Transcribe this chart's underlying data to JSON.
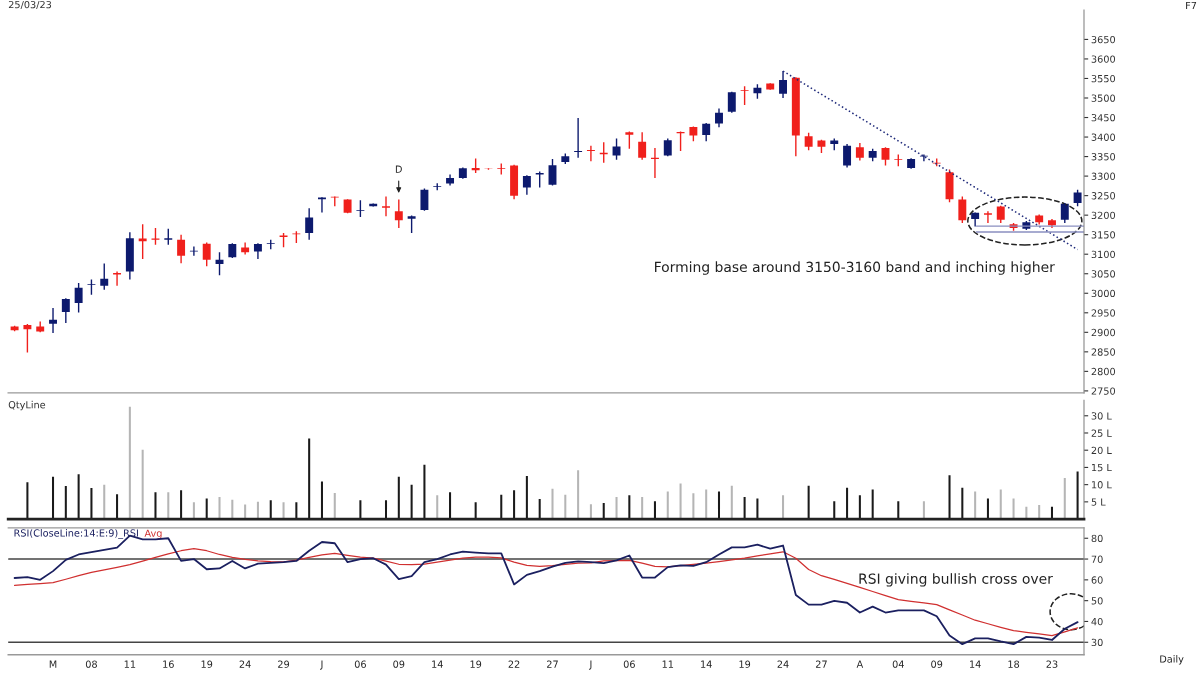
{
  "chart_data": [
    {
      "type": "candlestick",
      "title": "25/03/23",
      "categories": [
        null,
        null,
        null,
        null,
        null,
        null,
        null,
        null,
        null,
        null,
        null,
        null,
        null,
        null,
        null,
        null,
        null,
        null,
        null,
        null,
        null,
        null,
        null,
        null,
        null,
        null,
        null,
        null,
        null,
        null,
        null,
        null,
        null,
        null,
        null,
        null,
        null,
        null,
        null,
        null,
        null,
        null,
        null,
        null,
        null,
        null,
        null,
        null,
        null,
        null,
        null,
        null,
        null,
        null,
        null,
        null,
        null,
        null,
        null,
        null,
        null,
        null,
        null,
        null,
        null,
        null,
        null,
        null,
        null,
        null,
        null,
        null,
        null,
        null,
        null,
        null,
        null,
        null,
        null,
        null,
        null,
        null,
        null,
        null
      ],
      "ohlc": [
        [
          2915,
          2917,
          2903,
          2905
        ],
        [
          2919,
          2921,
          2848,
          2908
        ],
        [
          2915,
          2928,
          2900,
          2902
        ],
        [
          2922,
          2962,
          2898,
          2932
        ],
        [
          2952,
          2987,
          2924,
          2985
        ],
        [
          2975,
          3026,
          2951,
          3014
        ],
        [
          3021,
          3035,
          2996,
          3023
        ],
        [
          3019,
          3076,
          3009,
          3037
        ],
        [
          3052,
          3056,
          3019,
          3048
        ],
        [
          3056,
          3156,
          3035,
          3141
        ],
        [
          3140,
          3177,
          3088,
          3133
        ],
        [
          3140,
          3167,
          3124,
          3137
        ],
        [
          3137,
          3165,
          3124,
          3141
        ],
        [
          3137,
          3150,
          3077,
          3096
        ],
        [
          3107,
          3120,
          3096,
          3109
        ],
        [
          3127,
          3130,
          3069,
          3086
        ],
        [
          3075,
          3105,
          3046,
          3086
        ],
        [
          3092,
          3128,
          3090,
          3126
        ],
        [
          3117,
          3130,
          3099,
          3105
        ],
        [
          3107,
          3128,
          3088,
          3126
        ],
        [
          3127,
          3137,
          3113,
          3129
        ],
        [
          3148,
          3154,
          3118,
          3144
        ],
        [
          3153,
          3159,
          3129,
          3151
        ],
        [
          3154,
          3218,
          3137,
          3194
        ],
        [
          3241,
          3246,
          3207,
          3245
        ],
        [
          3247,
          3248,
          3223,
          3245
        ],
        [
          3240,
          3241,
          3205,
          3206
        ],
        [
          3211,
          3238,
          3195,
          3213
        ],
        [
          3223,
          3230,
          3222,
          3229
        ],
        [
          3223,
          3248,
          3197,
          3219
        ],
        [
          3210,
          3240,
          3167,
          3187
        ],
        [
          3191,
          3199,
          3154,
          3197
        ],
        [
          3213,
          3268,
          3211,
          3265
        ],
        [
          3272,
          3282,
          3264,
          3274
        ],
        [
          3281,
          3304,
          3276,
          3295
        ],
        [
          3295,
          3322,
          3293,
          3320
        ],
        [
          3321,
          3345,
          3308,
          3315
        ],
        [
          3319,
          3320,
          3316,
          3318
        ],
        [
          3320,
          3332,
          3304,
          3318
        ],
        [
          3327,
          3329,
          3241,
          3250
        ],
        [
          3271,
          3302,
          3252,
          3300
        ],
        [
          3304,
          3312,
          3271,
          3308
        ],
        [
          3278,
          3344,
          3276,
          3328
        ],
        [
          3336,
          3358,
          3331,
          3351
        ],
        [
          3362,
          3449,
          3347,
          3364
        ],
        [
          3367,
          3378,
          3338,
          3364
        ],
        [
          3360,
          3387,
          3334,
          3356
        ],
        [
          3353,
          3396,
          3342,
          3376
        ],
        [
          3412,
          3414,
          3370,
          3406
        ],
        [
          3388,
          3412,
          3342,
          3347
        ],
        [
          3347,
          3372,
          3295,
          3344
        ],
        [
          3353,
          3396,
          3351,
          3392
        ],
        [
          3413,
          3414,
          3364,
          3410
        ],
        [
          3426,
          3427,
          3389,
          3404
        ],
        [
          3405,
          3436,
          3389,
          3434
        ],
        [
          3435,
          3473,
          3425,
          3462
        ],
        [
          3465,
          3516,
          3462,
          3515
        ],
        [
          3520,
          3530,
          3482,
          3518
        ],
        [
          3512,
          3535,
          3498,
          3526
        ],
        [
          3537,
          3538,
          3521,
          3522
        ],
        [
          3511,
          3569,
          3500,
          3546
        ],
        [
          3552,
          3553,
          3351,
          3404
        ],
        [
          3402,
          3411,
          3366,
          3375
        ],
        [
          3391,
          3393,
          3359,
          3375
        ],
        [
          3382,
          3396,
          3366,
          3391
        ],
        [
          3327,
          3382,
          3322,
          3378
        ],
        [
          3374,
          3385,
          3340,
          3347
        ],
        [
          3347,
          3370,
          3338,
          3364
        ],
        [
          3372,
          3374,
          3327,
          3342
        ],
        [
          3343,
          3355,
          3325,
          3341
        ],
        [
          3321,
          3346,
          3319,
          3344
        ],
        [
          3350,
          3355,
          3338,
          3352
        ],
        [
          3334,
          3345,
          3325,
          3332
        ],
        [
          3310,
          3317,
          3233,
          3241
        ],
        [
          3240,
          3248,
          3180,
          3187
        ],
        [
          3190,
          3207,
          3171,
          3206
        ],
        [
          3205,
          3210,
          3180,
          3201
        ],
        [
          3222,
          3224,
          3180,
          3188
        ],
        [
          3177,
          3180,
          3160,
          3167
        ],
        [
          3165,
          3185,
          3162,
          3182
        ],
        [
          3199,
          3202,
          3176,
          3182
        ],
        [
          3187,
          3190,
          3167,
          3174
        ],
        [
          3188,
          3231,
          3180,
          3229
        ],
        [
          3231,
          3265,
          3223,
          3258
        ]
      ],
      "colors": [
        "#f0201c",
        "#f0201c",
        "#f0201c",
        "#0d1a6e",
        "#0d1a6e",
        "#0d1a6e",
        "#0d1a6e",
        "#0d1a6e",
        "#f0201c",
        "#0d1a6e",
        "#f0201c",
        "#f0201c",
        "#0d1a6e",
        "#f0201c",
        "#0d1a6e",
        "#f0201c",
        "#0d1a6e",
        "#0d1a6e",
        "#f0201c",
        "#0d1a6e",
        "#0d1a6e",
        "#f0201c",
        "#f0201c",
        "#0d1a6e",
        "#0d1a6e",
        "#f0201c",
        "#f0201c",
        "#0d1a6e",
        "#0d1a6e",
        "#f0201c",
        "#f0201c",
        "#0d1a6e",
        "#0d1a6e",
        "#0d1a6e",
        "#0d1a6e",
        "#0d1a6e",
        "#f0201c",
        "#f0201c",
        "#f0201c",
        "#f0201c",
        "#0d1a6e",
        "#0d1a6e",
        "#0d1a6e",
        "#0d1a6e",
        "#0d1a6e",
        "#f0201c",
        "#f0201c",
        "#0d1a6e",
        "#f0201c",
        "#f0201c",
        "#f0201c",
        "#0d1a6e",
        "#f0201c",
        "#f0201c",
        "#0d1a6e",
        "#0d1a6e",
        "#0d1a6e",
        "#f0201c",
        "#0d1a6e",
        "#f0201c",
        "#0d1a6e",
        "#f0201c",
        "#f0201c",
        "#f0201c",
        "#0d1a6e",
        "#0d1a6e",
        "#f0201c",
        "#0d1a6e",
        "#f0201c",
        "#f0201c",
        "#0d1a6e",
        "#0d1a6e",
        "#f0201c",
        "#f0201c",
        "#f0201c",
        "#0d1a6e",
        "#f0201c",
        "#f0201c",
        "#f0201c",
        "#0d1a6e",
        "#f0201c",
        "#f0201c",
        "#0d1a6e",
        "#0d1a6e"
      ],
      "series": [
        {
          "type": "line",
          "color": "#1f2a7a",
          "line_style": "dotted",
          "values": [
            null,
            null,
            null,
            null,
            null,
            null,
            null,
            null,
            null,
            null,
            null,
            null,
            null,
            null,
            null,
            null,
            null,
            null,
            null,
            null,
            null,
            null,
            null,
            null,
            null,
            null,
            null,
            null,
            null,
            null,
            null,
            null,
            null,
            null,
            null,
            null,
            null,
            null,
            null,
            null,
            null,
            null,
            null,
            null,
            null,
            null,
            null,
            null,
            null,
            null,
            null,
            null,
            null,
            null,
            null,
            null,
            null,
            null,
            null,
            null,
            3569,
            null,
            null,
            null,
            null,
            null,
            null,
            null,
            null,
            null,
            null,
            null,
            null,
            null,
            null,
            null,
            null,
            null,
            null,
            null,
            null,
            null,
            null,
            3112
          ]
        }
      ],
      "ylim": [
        2745,
        3725
      ],
      "yticks": [
        2750,
        2800,
        2850,
        2900,
        2950,
        3000,
        3050,
        3100,
        3150,
        3200,
        3250,
        3300,
        3350,
        3400,
        3450,
        3500,
        3550,
        3600,
        3650
      ],
      "tick_labels": "y",
      "ref_lines": [
        {
          "axis": "y",
          "value": 3172,
          "color": "#8a8fc0"
        },
        {
          "axis": "y",
          "value": 3157,
          "color": "#8a8fc0"
        }
      ],
      "annotations": [
        "Forming base around 3150-3160 band and inching higher",
        "F7",
        "D"
      ]
    },
    {
      "type": "bar",
      "title": "QtyLine",
      "categories": [
        null,
        null,
        null,
        null,
        null,
        null,
        null,
        null,
        null,
        null,
        null,
        null,
        null,
        null,
        null,
        null,
        null,
        null,
        null,
        null,
        null,
        null,
        null,
        null,
        null,
        null,
        null,
        null,
        null,
        null,
        null,
        null,
        null,
        null,
        null,
        null,
        null,
        null,
        null,
        null,
        null,
        null,
        null,
        null,
        null,
        null,
        null,
        null,
        null,
        null,
        null,
        null,
        null,
        null,
        null,
        null,
        null,
        null,
        null,
        null,
        null,
        null,
        null,
        null,
        null,
        null,
        null,
        null,
        null,
        null,
        null,
        null,
        null,
        null,
        null,
        null,
        null,
        null,
        null,
        null,
        null,
        null,
        null,
        null
      ],
      "values": [
        null,
        10.7,
        null,
        12.3,
        9.6,
        13.0,
        9.0,
        10.0,
        7.2,
        32.6,
        20.1,
        7.8,
        7.8,
        8.4,
        4.9,
        6.0,
        6.4,
        5.6,
        4.2,
        5.0,
        5.5,
        4.9,
        4.9,
        23.4,
        10.9,
        7.6,
        null,
        5.5,
        null,
        5.5,
        12.3,
        10.0,
        15.8,
        6.9,
        7.8,
        null,
        4.9,
        null,
        7.1,
        8.4,
        12.5,
        5.8,
        8.8,
        7.1,
        14.2,
        4.3,
        4.7,
        6.4,
        6.9,
        6.4,
        5.2,
        8.0,
        10.3,
        7.5,
        8.6,
        8.0,
        9.7,
        6.4,
        6.0,
        null,
        6.9,
        null,
        9.7,
        null,
        5.2,
        9.1,
        6.9,
        8.6,
        null,
        5.2,
        null,
        5.2,
        null,
        12.7,
        9.1,
        8.0,
        6.0,
        8.6,
        6.0,
        3.6,
        4.1,
        3.6,
        11.9,
        13.8
      ],
      "colors": [
        "#1a1a1a",
        "#1a1a1a",
        "#1a1a1a",
        "#1a1a1a",
        "#1a1a1a",
        "#1a1a1a",
        "#1a1a1a",
        "#b5b5b5",
        "#1a1a1a",
        "#b5b5b5",
        "#b5b5b5",
        "#1a1a1a",
        "#b5b5b5",
        "#1a1a1a",
        "#b5b5b5",
        "#1a1a1a",
        "#b5b5b5",
        "#b5b5b5",
        "#b5b5b5",
        "#b5b5b5",
        "#1a1a1a",
        "#b5b5b5",
        "#1a1a1a",
        "#1a1a1a",
        "#1a1a1a",
        "#b5b5b5",
        "#1a1a1a",
        "#1a1a1a",
        "#1a1a1a",
        "#1a1a1a",
        "#1a1a1a",
        "#1a1a1a",
        "#1a1a1a",
        "#b5b5b5",
        "#1a1a1a",
        "#1a1a1a",
        "#1a1a1a",
        "#1a1a1a",
        "#1a1a1a",
        "#1a1a1a",
        "#1a1a1a",
        "#1a1a1a",
        "#b5b5b5",
        "#b5b5b5",
        "#b5b5b5",
        "#b5b5b5",
        "#1a1a1a",
        "#b5b5b5",
        "#1a1a1a",
        "#b5b5b5",
        "#1a1a1a",
        "#b5b5b5",
        "#b5b5b5",
        "#b5b5b5",
        "#b5b5b5",
        "#1a1a1a",
        "#b5b5b5",
        "#1a1a1a",
        "#1a1a1a",
        "#1a1a1a",
        "#b5b5b5",
        "#1a1a1a",
        "#1a1a1a",
        "#1a1a1a",
        "#1a1a1a",
        "#1a1a1a",
        "#1a1a1a",
        "#1a1a1a",
        "#1a1a1a",
        "#1a1a1a",
        "#1a1a1a",
        "#b5b5b5",
        "#1a1a1a",
        "#1a1a1a",
        "#1a1a1a",
        "#b5b5b5",
        "#1a1a1a",
        "#b5b5b5",
        "#b5b5b5",
        "#b5b5b5",
        "#b5b5b5",
        "#1a1a1a",
        "#b5b5b5",
        "#1a1a1a"
      ],
      "ylim": [
        0,
        34.5
      ],
      "yticks": [
        {
          "value": 5,
          "label": "5 L"
        },
        {
          "value": 10,
          "label": "10 L"
        },
        {
          "value": 15,
          "label": "15 L"
        },
        {
          "value": 20,
          "label": "20 L"
        },
        {
          "value": 25,
          "label": "25 L"
        },
        {
          "value": 30,
          "label": "30 L"
        }
      ],
      "tick_labels": "y"
    },
    {
      "type": "line",
      "categories": [
        null,
        null,
        null,
        "M",
        null,
        null,
        "08",
        null,
        null,
        "11",
        null,
        null,
        "16",
        null,
        null,
        "19",
        null,
        null,
        "24",
        null,
        null,
        "29",
        null,
        null,
        "J",
        null,
        null,
        "06",
        null,
        null,
        "09",
        null,
        null,
        "14",
        null,
        null,
        "19",
        null,
        null,
        "22",
        null,
        null,
        "27",
        null,
        null,
        "J",
        null,
        null,
        "06",
        null,
        null,
        "11",
        null,
        null,
        "14",
        null,
        null,
        "19",
        null,
        null,
        "24",
        null,
        null,
        "27",
        null,
        null,
        "A",
        null,
        null,
        "04",
        null,
        null,
        "09",
        null,
        null,
        "14",
        null,
        null,
        "18",
        null,
        null,
        "23",
        null,
        null
      ],
      "series": [
        {
          "name": "RSI(CloseLine:14:E:9)_RSI",
          "color": "#1b2060",
          "values": [
            60.9,
            61.3,
            60.0,
            64.2,
            69.6,
            72.2,
            73.3,
            74.4,
            75.5,
            81.3,
            79.5,
            79.5,
            80.0,
            69.1,
            70.0,
            65.1,
            65.5,
            69.1,
            65.5,
            67.8,
            68.2,
            68.5,
            69.1,
            74.0,
            78.2,
            77.6,
            68.5,
            70.0,
            70.4,
            67.3,
            60.4,
            61.8,
            68.5,
            70.0,
            72.2,
            73.6,
            73.1,
            72.7,
            72.7,
            57.8,
            62.4,
            64.2,
            66.4,
            68.2,
            68.9,
            68.5,
            68.0,
            69.4,
            71.7,
            61.1,
            61.1,
            66.1,
            67.0,
            66.7,
            68.5,
            72.2,
            75.6,
            75.6,
            76.9,
            75.0,
            76.5,
            52.7,
            48.1,
            48.1,
            49.9,
            49.0,
            44.3,
            47.1,
            44.3,
            45.3,
            45.3,
            45.3,
            42.5,
            33.2,
            29.1,
            31.9,
            31.9,
            30.4,
            29.1,
            32.6,
            32.2,
            31.1,
            36.5,
            39.7
          ]
        },
        {
          "name": "Avg",
          "color": "#d03030",
          "values": [
            57.3,
            57.8,
            58.2,
            58.7,
            60.3,
            62.0,
            63.6,
            64.8,
            66.0,
            67.3,
            69.0,
            70.8,
            72.5,
            74.0,
            75.0,
            74.0,
            72.2,
            70.8,
            69.8,
            69.1,
            68.8,
            68.7,
            69.5,
            70.8,
            72.0,
            72.7,
            71.8,
            70.9,
            70.4,
            69.0,
            67.5,
            67.3,
            67.6,
            68.5,
            69.5,
            70.4,
            70.9,
            70.9,
            70.6,
            68.5,
            67.0,
            66.5,
            66.9,
            67.5,
            68.0,
            68.2,
            69.1,
            69.3,
            69.4,
            68.0,
            66.5,
            66.3,
            66.8,
            67.4,
            68.0,
            68.8,
            69.6,
            70.4,
            71.5,
            72.5,
            73.5,
            70.4,
            65.0,
            62.0,
            60.2,
            58.3,
            56.4,
            54.4,
            52.4,
            50.5,
            49.7,
            48.9,
            48.1,
            45.6,
            43.1,
            40.6,
            38.9,
            37.2,
            35.6,
            34.8,
            34.0,
            33.2,
            35.0,
            36.9
          ]
        }
      ],
      "ylim": [
        24,
        85
      ],
      "yticks": [
        30,
        40,
        50,
        60,
        70,
        80
      ],
      "ref_lines": [
        {
          "axis": "y",
          "value": 70,
          "color": "#444444"
        },
        {
          "axis": "y",
          "value": 30,
          "color": "#444444"
        }
      ],
      "legend": "top left",
      "annotations": [
        "RSI giving bullish cross over",
        "Daily"
      ]
    }
  ]
}
